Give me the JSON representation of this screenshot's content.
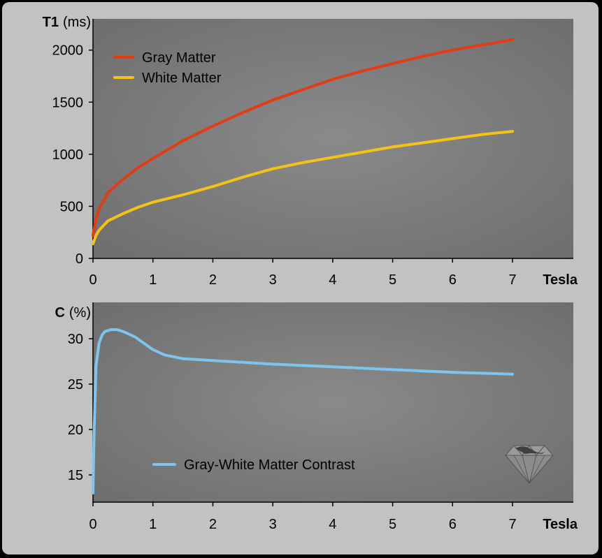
{
  "chart_data": [
    {
      "type": "line",
      "ylabel_bold": "T1",
      "ylabel_unit": "(ms)",
      "xlabel": "Tesla",
      "xlim": [
        0,
        7
      ],
      "ylim": [
        0,
        2300
      ],
      "xticks": [
        "0",
        "1",
        "2",
        "3",
        "4",
        "5",
        "6",
        "7"
      ],
      "yticks": [
        "0",
        "500",
        "1000",
        "1500",
        "2000"
      ],
      "grid": false,
      "legend_position": "top-left",
      "series": [
        {
          "name": "Gray Matter",
          "color": "#e33c12",
          "x": [
            0.0,
            0.05,
            0.1,
            0.25,
            0.5,
            0.75,
            1.0,
            1.5,
            2.0,
            2.5,
            3.0,
            3.5,
            4.0,
            4.5,
            5.0,
            5.5,
            6.0,
            6.5,
            7.0
          ],
          "y": [
            220,
            380,
            470,
            630,
            760,
            870,
            960,
            1130,
            1270,
            1400,
            1520,
            1620,
            1720,
            1800,
            1870,
            1940,
            2000,
            2050,
            2100
          ]
        },
        {
          "name": "White Matter",
          "color": "#f5c218",
          "x": [
            0.0,
            0.05,
            0.1,
            0.25,
            0.5,
            0.75,
            1.0,
            1.5,
            2.0,
            2.5,
            3.0,
            3.5,
            4.0,
            4.5,
            5.0,
            5.5,
            6.0,
            6.5,
            7.0
          ],
          "y": [
            140,
            220,
            270,
            360,
            430,
            490,
            540,
            610,
            690,
            780,
            860,
            920,
            970,
            1020,
            1070,
            1110,
            1150,
            1190,
            1220
          ]
        }
      ]
    },
    {
      "type": "line",
      "ylabel_bold": "C",
      "ylabel_unit": "(%)",
      "xlabel": "Tesla",
      "xlim": [
        0,
        7
      ],
      "ylim": [
        12,
        34
      ],
      "xticks": [
        "0",
        "1",
        "2",
        "3",
        "4",
        "5",
        "6",
        "7"
      ],
      "yticks": [
        "15",
        "20",
        "25",
        "30"
      ],
      "grid": false,
      "legend_position": "bottom-center",
      "series": [
        {
          "name": "Gray-White Matter Contrast",
          "color": "#7fc4ef",
          "x": [
            0.0,
            0.02,
            0.05,
            0.1,
            0.15,
            0.2,
            0.3,
            0.4,
            0.5,
            0.7,
            1.0,
            1.2,
            1.5,
            2.0,
            3.0,
            4.0,
            5.0,
            6.0,
            7.0
          ],
          "y": [
            13.0,
            20.0,
            27.0,
            29.5,
            30.4,
            30.8,
            31.0,
            31.0,
            30.8,
            30.2,
            28.8,
            28.2,
            27.8,
            27.6,
            27.2,
            26.9,
            26.6,
            26.3,
            26.1
          ]
        }
      ]
    }
  ],
  "logo": {
    "icon": "diamond-logo-icon"
  }
}
